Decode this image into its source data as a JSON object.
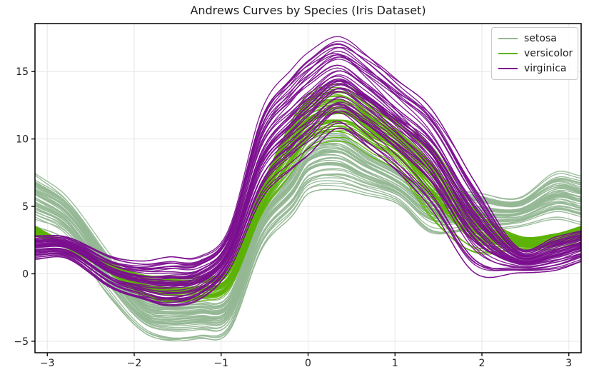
{
  "title": "Andrews Curves by Species (Iris Dataset)",
  "legend": {
    "position": "upper right",
    "entries": [
      {
        "label": "setosa",
        "color": "#94b794"
      },
      {
        "label": "versicolor",
        "color": "#5cb207"
      },
      {
        "label": "virginica",
        "color": "#7b0f8e"
      }
    ]
  },
  "axes": {
    "x_tick_values": [
      -3,
      -2,
      -1,
      0,
      1,
      2,
      3
    ],
    "x_tick_labels": [
      "−3",
      "−2",
      "−1",
      "0",
      "1",
      "2",
      "3"
    ],
    "y_tick_values": [
      -5,
      0,
      5,
      10,
      15
    ],
    "y_tick_labels": [
      "−5",
      "0",
      "5",
      "10",
      "15"
    ],
    "grid": true,
    "grid_color": "#e7e7e7",
    "spine_color": "#000000",
    "text_color": "#1c1c1c"
  },
  "chart_data": {
    "type": "line",
    "subtype": "andrews-curves",
    "title": "Andrews Curves by Species (Iris Dataset)",
    "xlabel": "",
    "ylabel": "",
    "x_range": [
      -3.14159,
      3.14159
    ],
    "y_range": [
      -5.85,
      18.56
    ],
    "grid": true,
    "legend_position": "upper right",
    "curves_per_species": 50,
    "note": "Each species is a bundle of 50 Andrews curves over t in [-pi, pi]; bundles described by center line and half-width envelope sampled at knot points t.",
    "series": [
      {
        "name": "setosa",
        "color": "#94b794",
        "n_curves": 50,
        "t": [
          -3.14159,
          -2.77,
          -2.26,
          -1.9,
          -1.6,
          -1.25,
          -0.91,
          -0.53,
          -0.17,
          0.0,
          0.34,
          0.65,
          1.04,
          1.42,
          1.91,
          2.42,
          2.85,
          3.14159
        ],
        "center": [
          5.5,
          4.05,
          -0.3,
          -2.9,
          -3.35,
          -3.25,
          -2.75,
          3.5,
          6.2,
          7.9,
          8.4,
          7.5,
          6.4,
          4.6,
          4.6,
          4.55,
          5.8,
          5.45
        ],
        "halfwidth": [
          1.9,
          1.6,
          1.55,
          1.35,
          1.55,
          1.5,
          1.5,
          1.6,
          1.75,
          1.9,
          2.1,
          1.6,
          1.2,
          1.6,
          1.4,
          1.05,
          1.7,
          1.75
        ]
      },
      {
        "name": "versicolor",
        "color": "#5cb207",
        "n_curves": 50,
        "t": [
          -3.14159,
          -2.77,
          -2.26,
          -1.9,
          -1.6,
          -1.25,
          -0.91,
          -0.53,
          -0.17,
          0.0,
          0.42,
          0.75,
          1.04,
          1.42,
          1.91,
          2.42,
          2.85,
          3.14159
        ],
        "center": [
          3.15,
          2.05,
          0.35,
          -0.9,
          -1.25,
          -1.1,
          -0.35,
          5.5,
          9.6,
          11.3,
          11.9,
          10.6,
          9.45,
          6.8,
          3.3,
          2.3,
          2.4,
          3.0
        ],
        "halfwidth": [
          0.35,
          0.2,
          0.4,
          0.8,
          1.05,
          0.9,
          0.8,
          1.05,
          1.9,
          2.0,
          2.05,
          1.95,
          1.85,
          2.6,
          1.65,
          0.5,
          0.55,
          0.5
        ]
      },
      {
        "name": "virginica",
        "color": "#7b0f8e",
        "n_curves": 50,
        "t": [
          -3.14159,
          -2.77,
          -2.26,
          -1.9,
          -1.6,
          -1.25,
          -0.91,
          -0.53,
          -0.17,
          0.0,
          0.34,
          0.65,
          1.04,
          1.42,
          1.91,
          2.42,
          2.85,
          3.14159
        ],
        "center": [
          1.95,
          1.9,
          0.0,
          -0.6,
          -0.7,
          -0.35,
          1.8,
          8.9,
          11.6,
          12.6,
          14.2,
          13.0,
          10.9,
          8.5,
          3.5,
          1.0,
          1.5,
          2.05
        ],
        "halfwidth": [
          0.85,
          0.8,
          1.25,
          1.5,
          1.9,
          1.6,
          1.5,
          3.2,
          3.6,
          3.7,
          3.3,
          3.3,
          3.3,
          3.6,
          3.3,
          0.9,
          1.2,
          1.1
        ]
      }
    ]
  }
}
